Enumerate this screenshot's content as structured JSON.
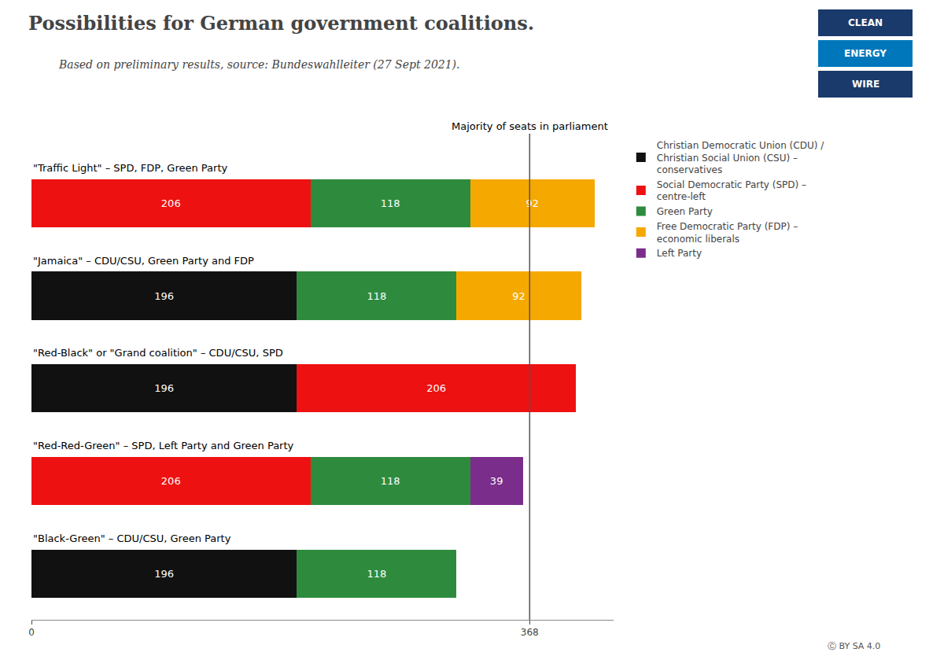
{
  "chart_data": {
    "type": "bar",
    "orientation": "horizontal",
    "stacked": true,
    "title": "Possibilities for German government coalitions.",
    "subtitle": "Based on preliminary results, source: Bundeswahlleiter (27 Sept 2021).",
    "categories": [
      "\"Traffic Light\" – SPD, FDP, Green Party",
      "\"Jamaica\" – CDU/CSU, Green Party and FDP",
      "\"Red-Black\" or \"Grand coalition\" – CDU/CSU, SPD",
      "\"Red-Red-Green\" – SPD, Left Party and Green Party",
      "\"Black-Green\" – CDU/CSU, Green Party"
    ],
    "series": [
      {
        "name": "Christian Democratic Union (CDU) /\nChristian Social Union (CSU) –\nconservatives",
        "color": "#111111",
        "values": [
          null,
          196,
          196,
          null,
          196
        ]
      },
      {
        "name": "Social Democratic Party (SPD) –\ncentre-left",
        "color": "#ee1111",
        "values": [
          206,
          null,
          206,
          206,
          null
        ]
      },
      {
        "name": "Green Party",
        "color": "#2e8b3e",
        "values": [
          118,
          118,
          null,
          118,
          118
        ]
      },
      {
        "name": "Free Democratic Party (FDP) –\neconomic liberals",
        "color": "#f5a800",
        "values": [
          92,
          92,
          null,
          null,
          null
        ]
      },
      {
        "name": "Left Party",
        "color": "#7b2d8b",
        "values": [
          null,
          null,
          null,
          39,
          null
        ]
      }
    ],
    "xlim": [
      0,
      430
    ],
    "xticks": [
      0,
      368
    ],
    "data_labels": true,
    "tick_labels": "x",
    "grid": false,
    "legend": "right",
    "annotations": [
      {
        "text": "Majority of seats in parliament",
        "x": 368
      },
      {
        "text": "Ⓒ BY SA 4.0"
      }
    ],
    "logo": {
      "texts": [
        "CLEAN",
        "ENERGY",
        "WIRE"
      ],
      "colors": [
        "#1a3a6b",
        "#0077bb",
        "#1a3a6b"
      ]
    }
  }
}
